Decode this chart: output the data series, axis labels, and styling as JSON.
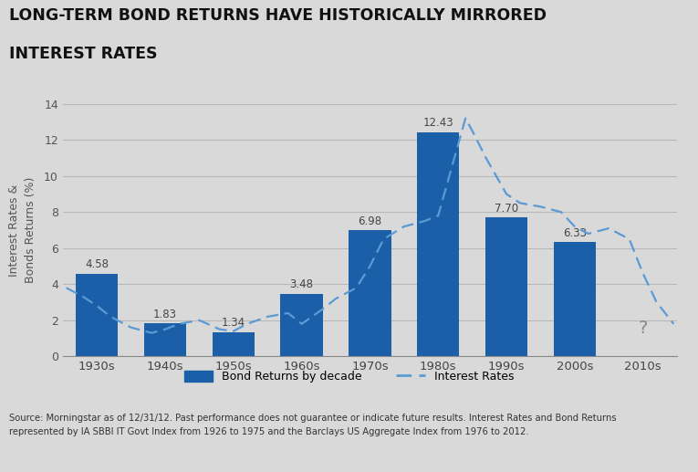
{
  "title_line1": "LONG-TERM BOND RETURNS HAVE HISTORICALLY MIRRORED",
  "title_line2": "INTEREST RATES",
  "categories": [
    "1930s",
    "1940s",
    "1950s",
    "1960s",
    "1970s",
    "1980s",
    "1990s",
    "2000s",
    "2010s"
  ],
  "bar_values": [
    4.58,
    1.83,
    1.34,
    3.48,
    6.98,
    12.43,
    7.7,
    6.33,
    null
  ],
  "bar_labels": [
    "4.58",
    "1.83",
    "1.34",
    "3.48",
    "6.98",
    "12.43",
    "7.70",
    "6.33",
    "?"
  ],
  "bar_color": "#1a5fa8",
  "interest_rates_x": [
    -0.45,
    -0.2,
    0.0,
    0.2,
    0.5,
    0.8,
    1.0,
    1.2,
    1.5,
    1.8,
    2.0,
    2.2,
    2.5,
    2.8,
    3.0,
    3.3,
    3.5,
    3.8,
    4.0,
    4.2,
    4.5,
    4.8,
    5.0,
    5.2,
    5.4,
    5.5,
    5.7,
    6.0,
    6.2,
    6.5,
    6.8,
    7.0,
    7.2,
    7.5,
    7.8,
    8.0,
    8.2,
    8.45
  ],
  "interest_rates_y": [
    3.8,
    3.3,
    2.8,
    2.2,
    1.6,
    1.3,
    1.5,
    1.8,
    2.0,
    1.5,
    1.4,
    1.8,
    2.2,
    2.4,
    1.8,
    2.6,
    3.2,
    3.8,
    5.0,
    6.5,
    7.2,
    7.5,
    7.8,
    10.5,
    13.2,
    12.5,
    11.0,
    9.0,
    8.5,
    8.3,
    8.0,
    7.2,
    6.8,
    7.1,
    6.5,
    4.6,
    3.0,
    1.8
  ],
  "interest_line_color": "#5b9bd5",
  "ylabel": "Interest Rates &\nBonds Returns (%)",
  "ylim": [
    0,
    14
  ],
  "yticks": [
    0,
    2,
    4,
    6,
    8,
    10,
    12,
    14
  ],
  "bg_color": "#d9d9d9",
  "plot_bg_color": "#d9d9d9",
  "title_bg_color": "#ffffff",
  "grid_color": "#b8b8b8",
  "footer_bg_color": "#ffffff",
  "footer_text_line1": "Source: Morningstar as of 12/31/12. Past performance does not guarantee or indicate future results. Interest Rates and Bond Returns",
  "footer_text_line2": "represented by IA SBBI IT Govt Index from 1926 to 1975 and the Barclays US Aggregate Index from 1976 to 2012.",
  "legend_bond_label": "Bond Returns by decade",
  "legend_rate_label": "Interest Rates"
}
